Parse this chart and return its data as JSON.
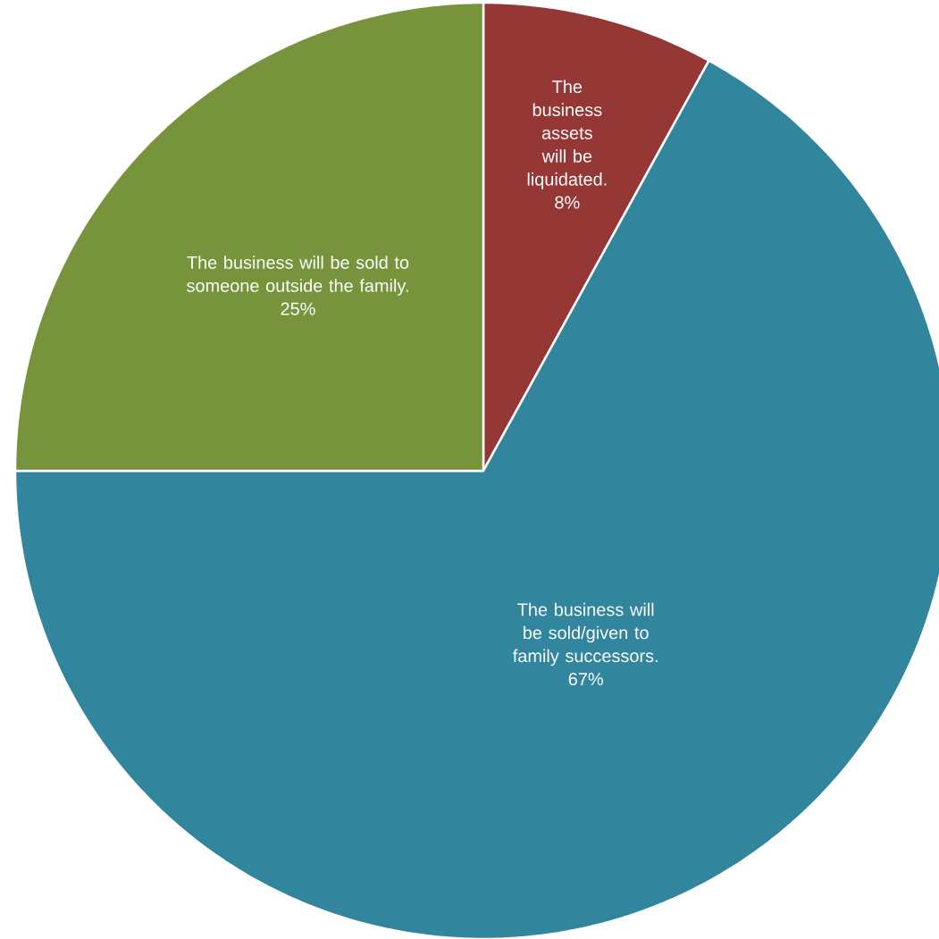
{
  "chart_data": {
    "type": "pie",
    "categories": [
      "The business assets will be liquidated.",
      "The business will be sold/given to family successors.",
      "The business will be sold to someone outside the family."
    ],
    "values": [
      8,
      67,
      25
    ],
    "value_labels": [
      "8%",
      "67%",
      "25%"
    ],
    "colors": [
      "#953735",
      "#31859c",
      "#77933c"
    ]
  }
}
